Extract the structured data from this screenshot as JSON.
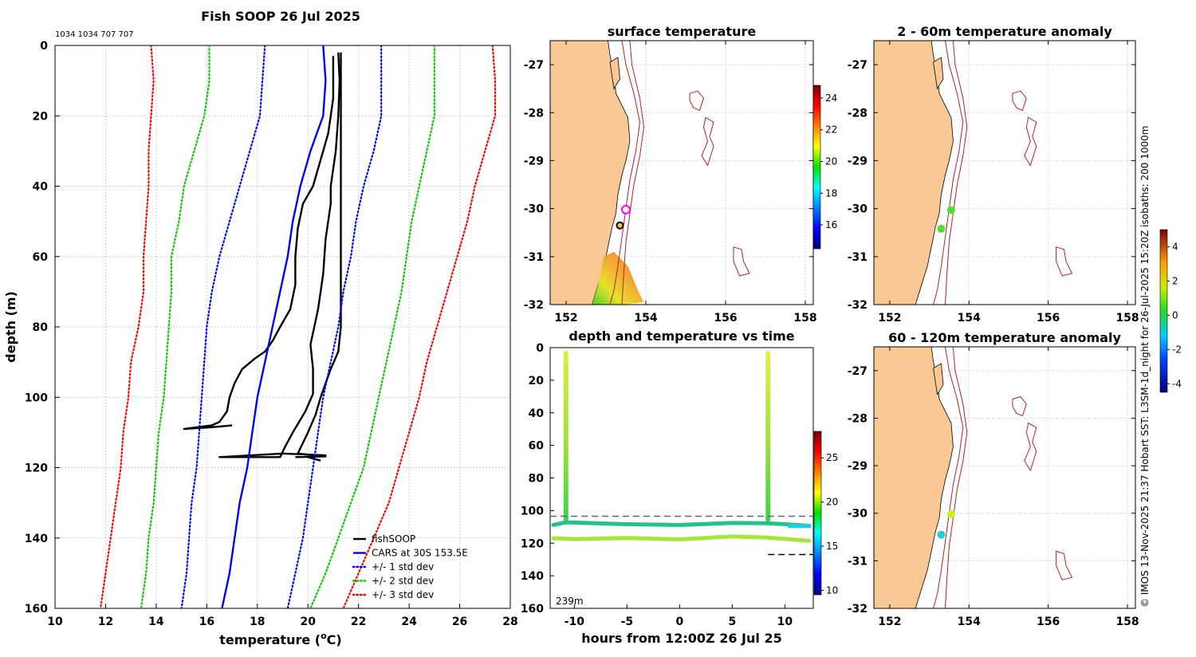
{
  "profile_panel": {
    "title": "Fish SOOP 26 Jul 2025",
    "counts_label": "1034 1034 707 707",
    "chart_data": {
      "type": "line",
      "xlabel": "temperature (",
      "xlabel_sup": "o",
      "xlabel_tail": "C)",
      "ylabel": "depth (m)",
      "xlim": [
        10,
        28
      ],
      "ylim": [
        0,
        160
      ],
      "y_inverted": true,
      "xticks": [
        10,
        12,
        14,
        16,
        18,
        20,
        22,
        24,
        26,
        28
      ],
      "yticks": [
        0,
        20,
        40,
        60,
        80,
        100,
        120,
        140,
        160
      ],
      "grid": true,
      "legend_position": "bottom-right",
      "series": [
        {
          "name": "fishSOOP",
          "color": "#000000",
          "style": "solid",
          "width": 2.4,
          "points": [
            [
              21.2,
              2
            ],
            [
              21.25,
              10
            ],
            [
              21.2,
              20
            ],
            [
              21.1,
              30
            ],
            [
              20.9,
              40
            ],
            [
              20.9,
              45
            ],
            [
              20.7,
              55
            ],
            [
              20.6,
              65
            ],
            [
              20.4,
              75
            ],
            [
              20.1,
              85
            ],
            [
              20.2,
              92
            ],
            [
              20.2,
              99
            ],
            [
              19.9,
              104
            ],
            [
              19.4,
              110
            ],
            [
              19.1,
              114
            ],
            [
              18.9,
              117
            ],
            [
              16.5,
              117
            ],
            [
              19.0,
              116
            ],
            [
              20.7,
              116.5
            ],
            [
              20.0,
              117
            ],
            [
              20.5,
              118
            ]
          ]
        },
        {
          "name": "fishSOOP",
          "color": "#000000",
          "style": "solid",
          "width": 2.4,
          "points": [
            [
              21.0,
              3
            ],
            [
              21.0,
              15
            ],
            [
              20.9,
              20
            ],
            [
              20.8,
              25
            ],
            [
              20.6,
              30
            ],
            [
              20.2,
              40
            ],
            [
              19.8,
              45
            ],
            [
              19.6,
              52
            ],
            [
              19.5,
              60
            ],
            [
              19.5,
              68
            ],
            [
              19.3,
              75
            ],
            [
              18.9,
              80
            ],
            [
              18.6,
              84
            ],
            [
              18.3,
              87
            ],
            [
              17.9,
              89
            ],
            [
              17.4,
              92
            ],
            [
              17.1,
              96
            ],
            [
              16.9,
              100
            ],
            [
              16.8,
              104
            ],
            [
              16.5,
              107
            ],
            [
              16.2,
              108
            ],
            [
              15.1,
              109
            ],
            [
              16.2,
              108.5
            ],
            [
              17.0,
              108
            ]
          ]
        },
        {
          "name": "fishSOOP",
          "color": "#000000",
          "style": "solid",
          "width": 2.4,
          "points": [
            [
              21.3,
              2
            ],
            [
              21.3,
              10
            ],
            [
              21.3,
              20
            ],
            [
              21.3,
              30
            ],
            [
              21.3,
              40
            ],
            [
              21.3,
              50
            ],
            [
              21.3,
              60
            ],
            [
              21.3,
              70
            ],
            [
              21.3,
              80
            ],
            [
              21.2,
              87
            ],
            [
              20.9,
              92
            ],
            [
              20.7,
              96
            ],
            [
              20.5,
              100
            ],
            [
              20.3,
              105
            ],
            [
              20.0,
              110
            ],
            [
              19.6,
              116
            ],
            [
              20.7,
              116.8
            ],
            [
              19.5,
              117
            ]
          ]
        },
        {
          "name": "CARS at 30S 153.5E",
          "color": "#0000ff",
          "style": "solid",
          "width": 2.4,
          "points": [
            [
              20.6,
              0
            ],
            [
              20.7,
              10
            ],
            [
              20.6,
              20
            ],
            [
              20.1,
              30
            ],
            [
              19.7,
              40
            ],
            [
              19.4,
              50
            ],
            [
              19.2,
              60
            ],
            [
              18.9,
              70
            ],
            [
              18.6,
              80
            ],
            [
              18.3,
              90
            ],
            [
              18.0,
              100
            ],
            [
              17.8,
              110
            ],
            [
              17.6,
              120
            ],
            [
              17.3,
              130
            ],
            [
              17.1,
              140
            ],
            [
              16.9,
              150
            ],
            [
              16.6,
              160
            ]
          ]
        },
        {
          "name": "+/- 1 std dev",
          "color": "#0000ff",
          "style": "dotted",
          "width": 2.2,
          "points": [
            [
              18.3,
              0
            ],
            [
              18.2,
              10
            ],
            [
              18.1,
              20
            ],
            [
              17.7,
              30
            ],
            [
              17.3,
              40
            ],
            [
              16.9,
              50
            ],
            [
              16.5,
              60
            ],
            [
              16.2,
              70
            ],
            [
              16.0,
              80
            ],
            [
              15.9,
              90
            ],
            [
              15.8,
              100
            ],
            [
              15.7,
              110
            ],
            [
              15.6,
              120
            ],
            [
              15.4,
              130
            ],
            [
              15.3,
              140
            ],
            [
              15.2,
              150
            ],
            [
              15.0,
              160
            ]
          ]
        },
        {
          "name": "+/- 1 std dev",
          "color": "#0000ff",
          "style": "dotted",
          "width": 2.2,
          "points": [
            [
              22.9,
              0
            ],
            [
              22.9,
              10
            ],
            [
              22.9,
              20
            ],
            [
              22.6,
              30
            ],
            [
              22.2,
              40
            ],
            [
              21.9,
              50
            ],
            [
              21.7,
              60
            ],
            [
              21.4,
              70
            ],
            [
              21.2,
              80
            ],
            [
              20.9,
              90
            ],
            [
              20.6,
              100
            ],
            [
              20.4,
              110
            ],
            [
              20.2,
              120
            ],
            [
              20.0,
              130
            ],
            [
              19.8,
              140
            ],
            [
              19.5,
              150
            ],
            [
              19.2,
              160
            ]
          ]
        },
        {
          "name": "+/- 2 std dev",
          "color": "#00cc00",
          "style": "dotted",
          "width": 2.2,
          "points": [
            [
              16.1,
              0
            ],
            [
              16.1,
              10
            ],
            [
              15.9,
              20
            ],
            [
              15.5,
              30
            ],
            [
              15.1,
              40
            ],
            [
              14.9,
              50
            ],
            [
              14.6,
              60
            ],
            [
              14.6,
              70
            ],
            [
              14.5,
              80
            ],
            [
              14.4,
              90
            ],
            [
              14.3,
              100
            ],
            [
              14.1,
              110
            ],
            [
              14.0,
              120
            ],
            [
              13.9,
              130
            ],
            [
              13.7,
              140
            ],
            [
              13.6,
              150
            ],
            [
              13.4,
              160
            ]
          ]
        },
        {
          "name": "+/- 2 std dev",
          "color": "#00cc00",
          "style": "dotted",
          "width": 2.2,
          "points": [
            [
              25.0,
              0
            ],
            [
              25.0,
              10
            ],
            [
              25.0,
              20
            ],
            [
              24.7,
              30
            ],
            [
              24.4,
              40
            ],
            [
              24.1,
              50
            ],
            [
              23.9,
              60
            ],
            [
              23.7,
              70
            ],
            [
              23.4,
              80
            ],
            [
              23.1,
              90
            ],
            [
              22.8,
              100
            ],
            [
              22.5,
              110
            ],
            [
              22.2,
              120
            ],
            [
              21.7,
              130
            ],
            [
              21.2,
              140
            ],
            [
              20.7,
              150
            ],
            [
              20.1,
              160
            ]
          ]
        },
        {
          "name": "+/- 3 std dev",
          "color": "#ff0000",
          "style": "dotted",
          "width": 2.2,
          "points": [
            [
              13.8,
              0
            ],
            [
              13.9,
              10
            ],
            [
              13.8,
              20
            ],
            [
              13.7,
              30
            ],
            [
              13.7,
              40
            ],
            [
              13.6,
              50
            ],
            [
              13.5,
              60
            ],
            [
              13.5,
              70
            ],
            [
              13.3,
              80
            ],
            [
              13.0,
              90
            ],
            [
              12.9,
              100
            ],
            [
              12.7,
              110
            ],
            [
              12.6,
              120
            ],
            [
              12.4,
              130
            ],
            [
              12.2,
              140
            ],
            [
              12.0,
              150
            ],
            [
              11.8,
              160
            ]
          ]
        },
        {
          "name": "+/- 3 std dev",
          "color": "#ff0000",
          "style": "dotted",
          "width": 2.2,
          "points": [
            [
              27.3,
              0
            ],
            [
              27.4,
              10
            ],
            [
              27.4,
              20
            ],
            [
              27.0,
              30
            ],
            [
              26.6,
              40
            ],
            [
              26.3,
              50
            ],
            [
              25.9,
              60
            ],
            [
              25.5,
              70
            ],
            [
              25.1,
              80
            ],
            [
              24.7,
              90
            ],
            [
              24.4,
              100
            ],
            [
              24.0,
              110
            ],
            [
              23.6,
              120
            ],
            [
              23.2,
              130
            ],
            [
              22.6,
              140
            ],
            [
              22.0,
              150
            ],
            [
              21.4,
              160
            ]
          ]
        }
      ],
      "legend": [
        {
          "label": "fishSOOP",
          "color": "#000000",
          "style": "solid"
        },
        {
          "label": "CARS at 30S 153.5E",
          "color": "#0000ff",
          "style": "solid"
        },
        {
          "label": "+/- 1 std dev",
          "color": "#0000ff",
          "style": "dotted"
        },
        {
          "label": "+/- 2 std dev",
          "color": "#00cc00",
          "style": "dotted"
        },
        {
          "label": "+/- 3 std dev",
          "color": "#ff0000",
          "style": "dotted"
        }
      ]
    }
  },
  "map_panels": [
    {
      "id": "sst",
      "title": "surface temperature",
      "colorbar_ticks": [
        16,
        18,
        20,
        22,
        24
      ],
      "colorbar_range": [
        14.5,
        24.8
      ],
      "show_xticks": true,
      "points": [
        {
          "lon": 153.5,
          "lat": -30.02,
          "color": "#ffffff",
          "stroke": "#ff00ff",
          "r": 5
        },
        {
          "lon": 153.35,
          "lat": -30.35,
          "color": "#f5c542",
          "stroke": "#000000",
          "r": 4
        }
      ]
    },
    {
      "id": "anom_2_60",
      "title": "2 - 60m temperature anomaly",
      "colorbar_ticks": [
        -4,
        -2,
        0,
        2,
        4
      ],
      "colorbar_range": [
        -4.5,
        5
      ],
      "show_xticks": true,
      "points": [
        {
          "lon": 153.55,
          "lat": -30.03,
          "color": "#55dd33",
          "stroke": "none",
          "r": 5
        },
        {
          "lon": 153.3,
          "lat": -30.42,
          "color": "#55dd33",
          "stroke": "none",
          "r": 5
        }
      ]
    },
    {
      "id": "anom_60_120",
      "title": "60 - 120m temperature anomaly",
      "show_xticks": true,
      "points": [
        {
          "lon": 153.55,
          "lat": -30.02,
          "color": "#ccee22",
          "stroke": "none",
          "r": 5
        },
        {
          "lon": 153.3,
          "lat": -30.45,
          "color": "#22ccdd",
          "stroke": "none",
          "r": 5
        }
      ]
    }
  ],
  "map_axes": {
    "xticks": [
      152,
      154,
      156,
      158
    ],
    "yticks": [
      -27,
      -28,
      -29,
      -30,
      -31,
      -32
    ],
    "xlim": [
      151.6,
      158.2
    ],
    "ylim": [
      -32,
      -26.5
    ]
  },
  "time_panel": {
    "title": "depth and temperature vs time",
    "xlabel": "hours from 12:00Z 26 Jul 25",
    "xticks": [
      -10,
      -5,
      0,
      5,
      10
    ],
    "yticks": [
      0,
      20,
      40,
      60,
      80,
      100,
      120,
      140,
      160
    ],
    "xlim": [
      -12.3,
      12.7
    ],
    "ylim": [
      0,
      160
    ],
    "depth_note": "239m",
    "colorbar_ticks": [
      10,
      15,
      20,
      25
    ],
    "colorbar_range": [
      9.5,
      28
    ],
    "chart_data": {
      "type": "scatter",
      "series": [
        {
          "name": "descent_1",
          "x": [
            -10.8,
            -10.8
          ],
          "y": [
            2,
            107
          ],
          "colors": [
            "#d7f03a",
            "#3cd24e"
          ]
        },
        {
          "name": "ascent_2",
          "x": [
            8.4,
            8.4
          ],
          "y": [
            2,
            107
          ],
          "colors": [
            " #e6f045",
            "#3cd24e"
          ]
        },
        {
          "name": "tow_shallow",
          "x": [
            -12,
            -10.8,
            -5,
            0,
            5,
            8.4,
            12.3
          ],
          "y": [
            108.8,
            107.2,
            108.4,
            108.8,
            107.6,
            107.8,
            109.3
          ],
          "color": "#22c28a"
        },
        {
          "name": "tow_deep",
          "x": [
            -12,
            -10,
            -5,
            0,
            5,
            8.4,
            12.3
          ],
          "y": [
            117,
            117.5,
            116.8,
            117.7,
            115.8,
            116.6,
            118.5
          ],
          "color": "#a6e63a"
        }
      ],
      "ref_lines": [
        {
          "y": 103.5,
          "x_from": -12.3,
          "x_to": 12.7,
          "style": "dashed",
          "color": "#666666"
        },
        {
          "y": 127,
          "x_from": 8.4,
          "x_to": 12.7,
          "style": "dashed",
          "color": "#000000"
        }
      ]
    }
  },
  "side_note": "© IMOS 13-Nov-2025 21:37 Hobart SST: L3SM-1d_night for 26-Jul-2025 15:20Z isobaths: 200  1000m"
}
